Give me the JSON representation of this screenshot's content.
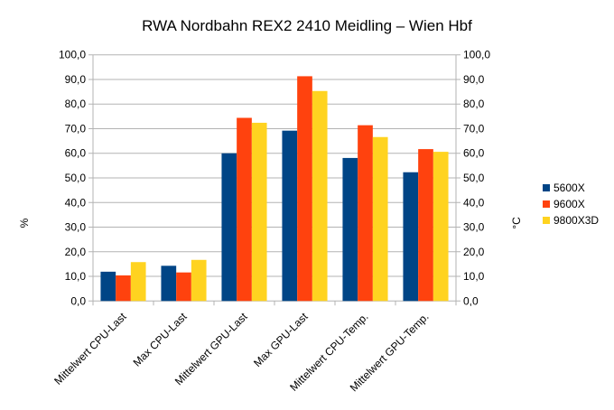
{
  "chart_data": {
    "type": "bar",
    "title": "RWA Nordbahn REX2 2410 Meidling – Wien Hbf",
    "ylabel": "%",
    "y2label": "°C",
    "xlabel": "",
    "ylim": [
      0,
      100
    ],
    "yticks": [
      "0,0",
      "10,0",
      "20,0",
      "30,0",
      "40,0",
      "50,0",
      "60,0",
      "70,0",
      "80,0",
      "90,0",
      "100,0"
    ],
    "grid": true,
    "legend_position": "right",
    "categories": [
      "Mittelwert CPU-Last",
      "Max CPU-Last",
      "Mittelwert GPU-Last",
      "Max GPU-Last",
      "Mittelwert CPU-Temp.",
      "Mittelwert GPU-Temp."
    ],
    "series": [
      {
        "name": "5600X",
        "color": "#004586",
        "values": [
          11.9,
          14.3,
          60.0,
          69.2,
          58.1,
          52.3
        ]
      },
      {
        "name": "9600X",
        "color": "#ff420e",
        "values": [
          10.4,
          11.6,
          74.4,
          91.3,
          71.4,
          61.7
        ]
      },
      {
        "name": "9800X3D",
        "color": "#ffd320",
        "values": [
          15.8,
          16.7,
          72.4,
          85.3,
          66.6,
          60.6
        ]
      }
    ]
  }
}
